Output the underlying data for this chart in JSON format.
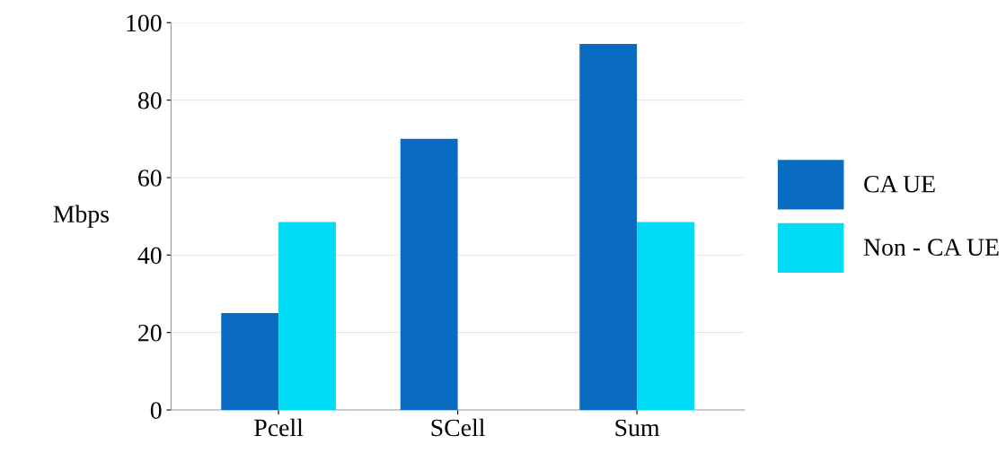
{
  "chart_data": {
    "type": "bar",
    "ylabel": "Mbps",
    "categories": [
      "Pcell",
      "SCell",
      "Sum"
    ],
    "series": [
      {
        "name": "CA UE",
        "color": "#0a6cc0",
        "values": [
          25,
          70,
          94.5
        ]
      },
      {
        "name": "Non - CA UE",
        "color": "#00dcf5",
        "values": [
          48.5,
          null,
          48.5
        ]
      }
    ],
    "ylim": [
      0,
      100
    ],
    "yticks": [
      0,
      20,
      40,
      60,
      80,
      100
    ],
    "grid": "y",
    "legend": "right"
  }
}
